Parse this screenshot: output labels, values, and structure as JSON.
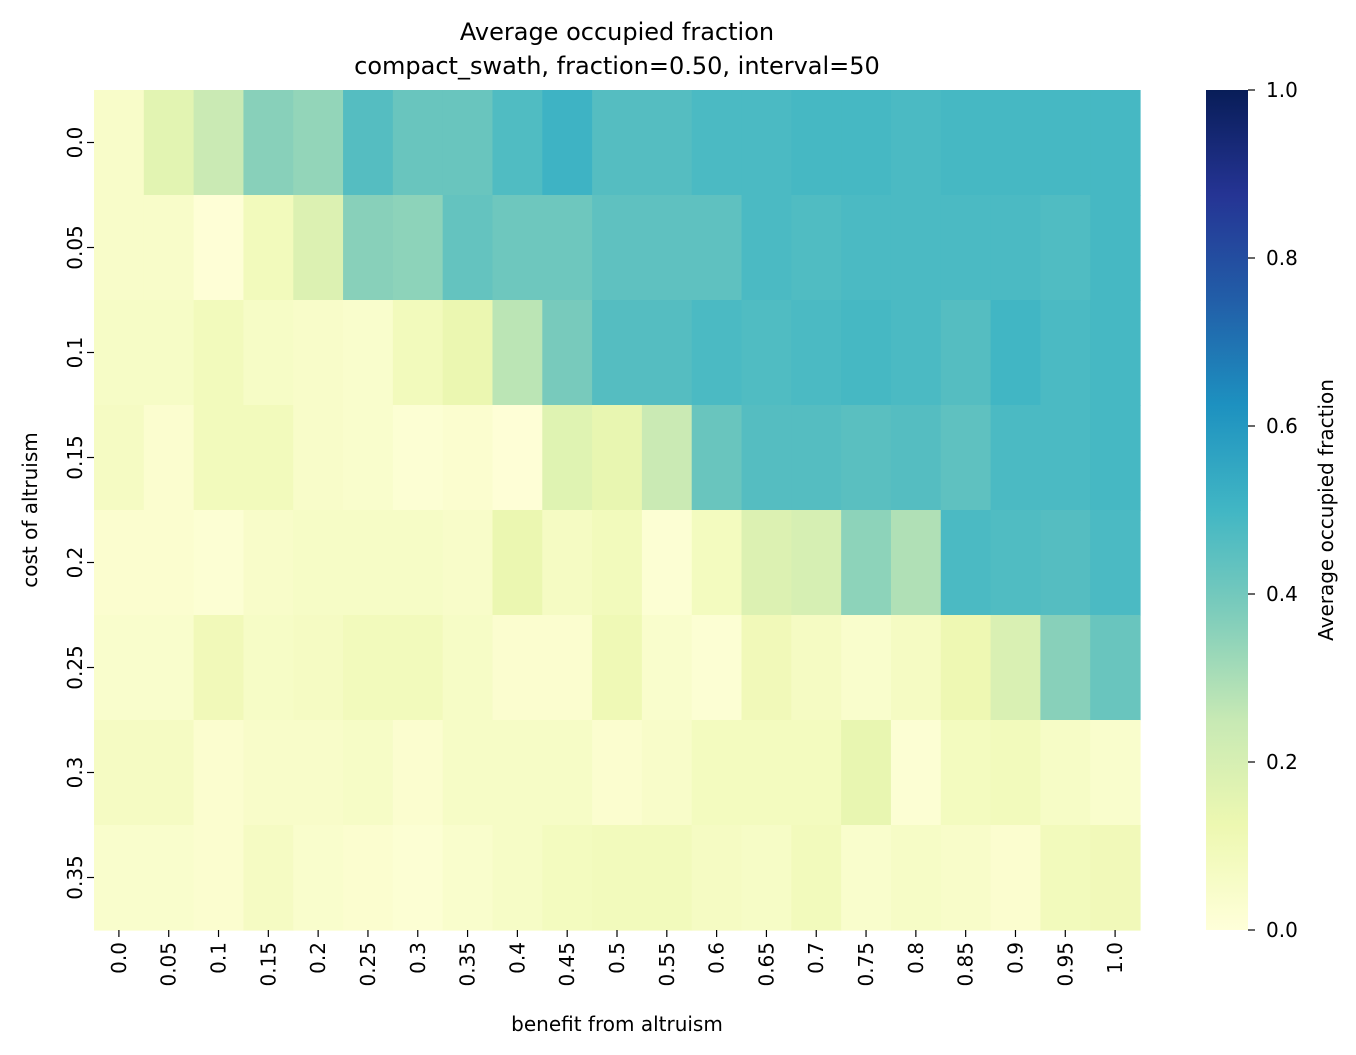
{
  "chart_data": {
    "type": "heatmap",
    "title": "Average occupied fraction",
    "subtitle": "compact_swath, fraction=0.50, interval=50",
    "xlabel": "benefit from altruism",
    "ylabel": "cost of altruism",
    "x": [
      "0.0",
      "0.05",
      "0.1",
      "0.15",
      "0.2",
      "0.25",
      "0.3",
      "0.35",
      "0.4",
      "0.45",
      "0.5",
      "0.55",
      "0.6",
      "0.65",
      "0.7",
      "0.75",
      "0.8",
      "0.85",
      "0.9",
      "0.95",
      "1.0"
    ],
    "y": [
      "0.0",
      "0.05",
      "0.1",
      "0.15",
      "0.2",
      "0.25",
      "0.3",
      "0.35"
    ],
    "values": [
      [
        0.05,
        0.16,
        0.24,
        0.36,
        0.34,
        0.46,
        0.42,
        0.42,
        0.47,
        0.51,
        0.46,
        0.46,
        0.48,
        0.48,
        0.49,
        0.49,
        0.48,
        0.49,
        0.49,
        0.49,
        0.49
      ],
      [
        0.05,
        0.05,
        0.01,
        0.09,
        0.18,
        0.36,
        0.35,
        0.43,
        0.41,
        0.41,
        0.44,
        0.44,
        0.44,
        0.48,
        0.47,
        0.48,
        0.48,
        0.48,
        0.48,
        0.47,
        0.49
      ],
      [
        0.06,
        0.06,
        0.09,
        0.06,
        0.05,
        0.04,
        0.09,
        0.13,
        0.27,
        0.39,
        0.46,
        0.46,
        0.48,
        0.47,
        0.48,
        0.49,
        0.48,
        0.46,
        0.5,
        0.48,
        0.49
      ],
      [
        0.07,
        0.03,
        0.09,
        0.09,
        0.05,
        0.04,
        0.02,
        0.03,
        0.01,
        0.17,
        0.14,
        0.24,
        0.42,
        0.46,
        0.46,
        0.45,
        0.46,
        0.44,
        0.48,
        0.48,
        0.49
      ],
      [
        0.03,
        0.03,
        0.02,
        0.05,
        0.06,
        0.06,
        0.06,
        0.05,
        0.13,
        0.07,
        0.09,
        0.02,
        0.08,
        0.18,
        0.2,
        0.35,
        0.29,
        0.48,
        0.47,
        0.46,
        0.48
      ],
      [
        0.04,
        0.04,
        0.1,
        0.06,
        0.07,
        0.09,
        0.09,
        0.06,
        0.03,
        0.03,
        0.11,
        0.04,
        0.02,
        0.1,
        0.07,
        0.04,
        0.07,
        0.12,
        0.19,
        0.36,
        0.42
      ],
      [
        0.07,
        0.07,
        0.03,
        0.05,
        0.05,
        0.06,
        0.03,
        0.06,
        0.06,
        0.06,
        0.03,
        0.05,
        0.08,
        0.08,
        0.08,
        0.14,
        0.02,
        0.08,
        0.09,
        0.06,
        0.04
      ],
      [
        0.04,
        0.04,
        0.03,
        0.07,
        0.04,
        0.03,
        0.02,
        0.04,
        0.06,
        0.08,
        0.09,
        0.09,
        0.07,
        0.06,
        0.09,
        0.04,
        0.06,
        0.05,
        0.03,
        0.09,
        0.1
      ]
    ],
    "colorbar": {
      "label": "Average occupied fraction",
      "ticks": [
        "0.0",
        "0.2",
        "0.4",
        "0.6",
        "0.8",
        "1.0"
      ],
      "range": [
        0,
        1
      ],
      "colormap": "YlGnBu",
      "stops": [
        "#ffffd9",
        "#edf8b1",
        "#c7e9b4",
        "#7fcdbb",
        "#41b6c4",
        "#1d91c0",
        "#225ea8",
        "#253494",
        "#081d58"
      ]
    }
  }
}
